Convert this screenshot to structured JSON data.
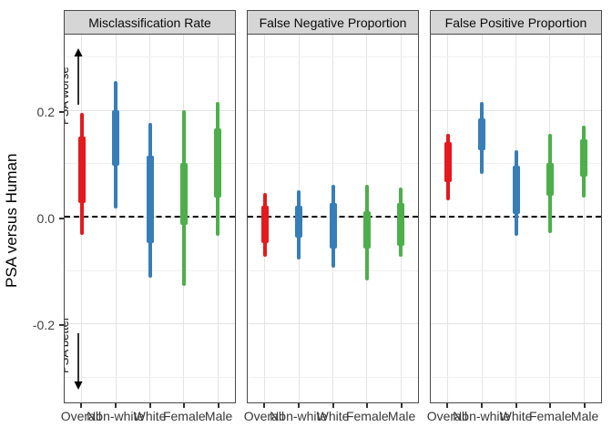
{
  "figure": {
    "y_axis_title": "PSA versus Human",
    "annotation_up": "PSA worse",
    "annotation_down": "PSA better"
  },
  "colors": {
    "overall": "#E41A1C",
    "non_white": "#377EB8",
    "white": "#377EB8",
    "female": "#4DAF4A",
    "male": "#4DAF4A",
    "zero_line": "#000000",
    "strip_bg": "#D6D6D6",
    "panel_border": "#4A4A4A",
    "grid_major": "#E2E2E2",
    "grid_minor": "#F0F0F0"
  },
  "chart_data": {
    "type": "interval",
    "title": "",
    "y_axis_title": "PSA versus Human",
    "x_axis_title": "",
    "ylim": [
      -0.348,
      0.345
    ],
    "y_tick_values": [
      0.2,
      0.0,
      -0.2
    ],
    "y_tick_labels": [
      "0.2",
      "0.0",
      "-0.2"
    ],
    "y_minor_gridlines": [
      0.3,
      0.1,
      -0.1,
      -0.3
    ],
    "zero_reference_line": 0,
    "grid": "on",
    "legend": "none",
    "categories": [
      "Overall",
      "Non-white",
      "White",
      "Female",
      "Male"
    ],
    "annotations": [
      {
        "text": "PSA worse",
        "direction": "up",
        "panel": "Misclassification Rate"
      },
      {
        "text": "PSA better",
        "direction": "down",
        "panel": "Misclassification Rate"
      }
    ],
    "facets": [
      {
        "title": "Misclassification Rate",
        "intervals": [
          {
            "category": "Overall",
            "group": "overall",
            "outer": [
              -0.035,
              0.195
            ],
            "inner": [
              0.025,
              0.15
            ]
          },
          {
            "category": "Non-white",
            "group": "non_white",
            "outer": [
              0.015,
              0.255
            ],
            "inner": [
              0.095,
              0.2
            ]
          },
          {
            "category": "White",
            "group": "white",
            "outer": [
              -0.115,
              0.175
            ],
            "inner": [
              -0.05,
              0.115
            ]
          },
          {
            "category": "Female",
            "group": "female",
            "outer": [
              -0.13,
              0.2
            ],
            "inner": [
              -0.015,
              0.1
            ]
          },
          {
            "category": "Male",
            "group": "male",
            "outer": [
              -0.035,
              0.215
            ],
            "inner": [
              0.035,
              0.165
            ]
          }
        ]
      },
      {
        "title": "False Negative Proportion",
        "intervals": [
          {
            "category": "Overall",
            "group": "overall",
            "outer": [
              -0.075,
              0.045
            ],
            "inner": [
              -0.05,
              0.02
            ]
          },
          {
            "category": "Non-white",
            "group": "non_white",
            "outer": [
              -0.08,
              0.05
            ],
            "inner": [
              -0.04,
              0.02
            ]
          },
          {
            "category": "White",
            "group": "white",
            "outer": [
              -0.095,
              0.06
            ],
            "inner": [
              -0.06,
              0.025
            ]
          },
          {
            "category": "Female",
            "group": "female",
            "outer": [
              -0.12,
              0.06
            ],
            "inner": [
              -0.06,
              0.01
            ]
          },
          {
            "category": "Male",
            "group": "male",
            "outer": [
              -0.075,
              0.055
            ],
            "inner": [
              -0.055,
              0.025
            ]
          }
        ]
      },
      {
        "title": "False Positive Proportion",
        "intervals": [
          {
            "category": "Overall",
            "group": "overall",
            "outer": [
              0.03,
              0.155
            ],
            "inner": [
              0.065,
              0.14
            ]
          },
          {
            "category": "Non-white",
            "group": "non_white",
            "outer": [
              0.08,
              0.215
            ],
            "inner": [
              0.125,
              0.185
            ]
          },
          {
            "category": "White",
            "group": "white",
            "outer": [
              -0.035,
              0.125
            ],
            "inner": [
              0.005,
              0.095
            ]
          },
          {
            "category": "Female",
            "group": "female",
            "outer": [
              -0.03,
              0.155
            ],
            "inner": [
              0.04,
              0.1
            ]
          },
          {
            "category": "Male",
            "group": "male",
            "outer": [
              0.035,
              0.17
            ],
            "inner": [
              0.075,
              0.145
            ]
          }
        ]
      }
    ]
  }
}
